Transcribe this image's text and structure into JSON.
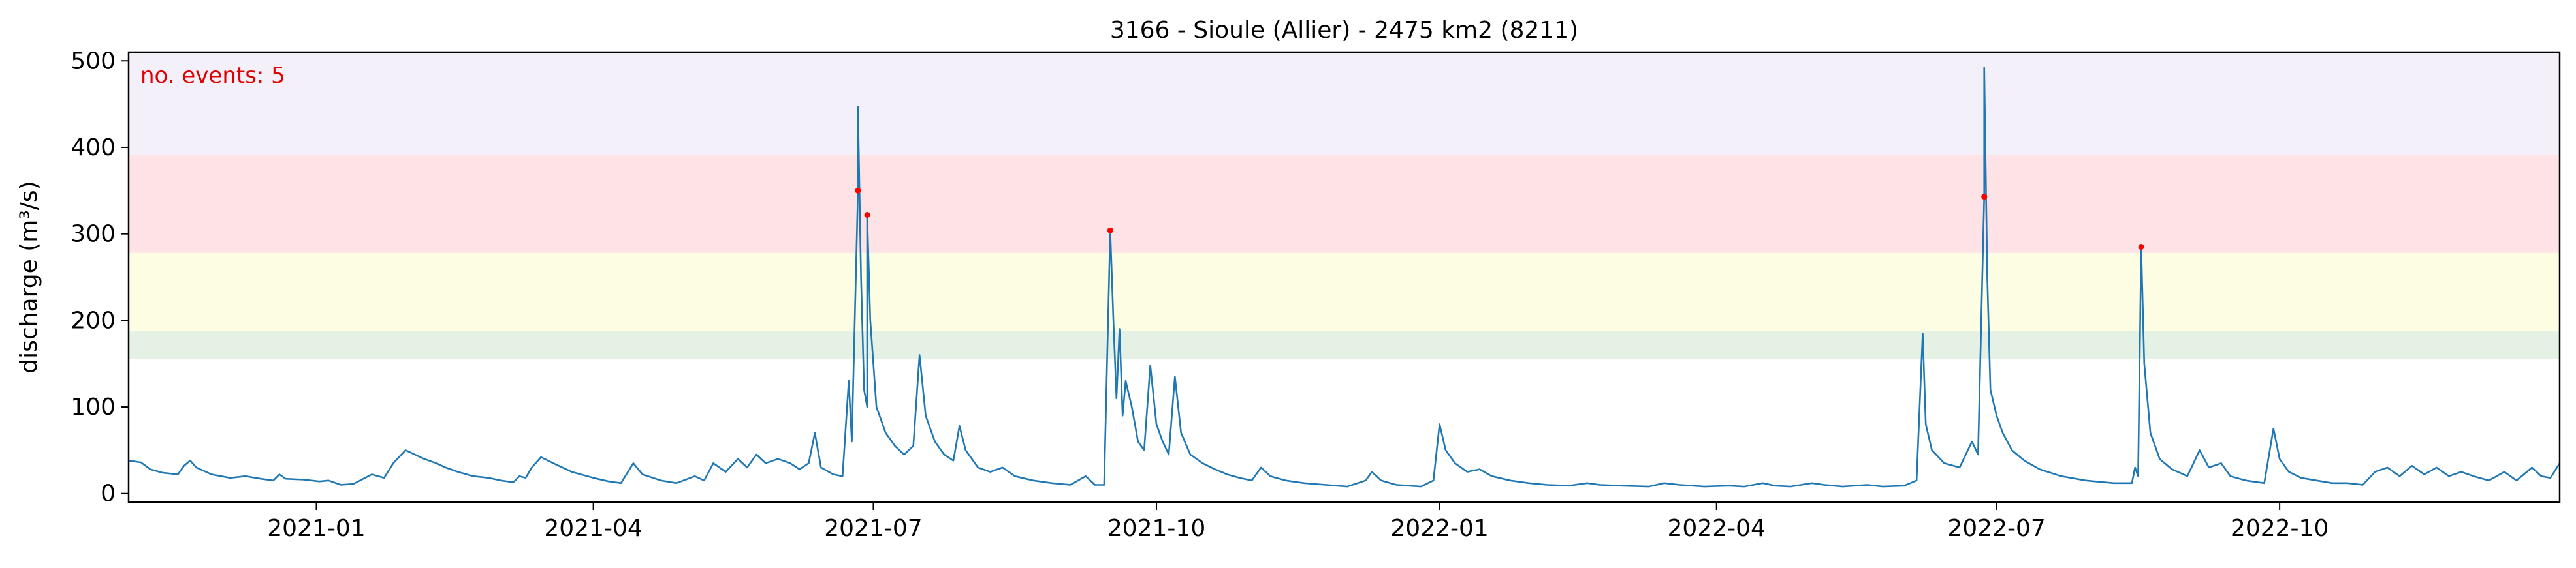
{
  "chart_data": {
    "type": "line",
    "title": "3166 - Sioule (Allier) - 2475 km2 (8211)",
    "xlabel": "",
    "ylabel": "discharge (m³/s)",
    "annotation": "no. events: 5",
    "xlim": [
      "2020-11-01",
      "2022-12-31"
    ],
    "ylim": [
      -10,
      510
    ],
    "y_ticks": [
      0,
      100,
      200,
      300,
      400,
      500
    ],
    "x_ticks": [
      {
        "date": "2021-01-01",
        "label": "2021-01"
      },
      {
        "date": "2021-04-01",
        "label": "2021-04"
      },
      {
        "date": "2021-07-01",
        "label": "2021-07"
      },
      {
        "date": "2021-10-01",
        "label": "2021-10"
      },
      {
        "date": "2022-01-01",
        "label": "2022-01"
      },
      {
        "date": "2022-04-01",
        "label": "2022-04"
      },
      {
        "date": "2022-07-01",
        "label": "2022-07"
      },
      {
        "date": "2022-10-01",
        "label": "2022-10"
      }
    ],
    "grid": false,
    "threshold_bands": [
      {
        "from": 155,
        "to": 188,
        "color": "#e6f1e6"
      },
      {
        "from": 188,
        "to": 278,
        "color": "#fdfde3"
      },
      {
        "from": 278,
        "to": 391,
        "color": "#fde3e6"
      },
      {
        "from": 391,
        "to": 510,
        "color": "#f3f0fa"
      }
    ],
    "series": [
      {
        "color": "#1f77b4",
        "points": [
          [
            "2020-11-01",
            38
          ],
          [
            "2020-11-05",
            36
          ],
          [
            "2020-11-08",
            28
          ],
          [
            "2020-11-12",
            24
          ],
          [
            "2020-11-17",
            22
          ],
          [
            "2020-11-19",
            32
          ],
          [
            "2020-11-21",
            38
          ],
          [
            "2020-11-23",
            30
          ],
          [
            "2020-11-28",
            22
          ],
          [
            "2020-12-04",
            18
          ],
          [
            "2020-12-09",
            20
          ],
          [
            "2020-12-14",
            17
          ],
          [
            "2020-12-18",
            15
          ],
          [
            "2020-12-20",
            22
          ],
          [
            "2020-12-22",
            17
          ],
          [
            "2020-12-28",
            16
          ],
          [
            "2021-01-02",
            14
          ],
          [
            "2021-01-05",
            15
          ],
          [
            "2021-01-09",
            10
          ],
          [
            "2021-01-13",
            11
          ],
          [
            "2021-01-19",
            22
          ],
          [
            "2021-01-23",
            18
          ],
          [
            "2021-01-26",
            35
          ],
          [
            "2021-01-30",
            50
          ],
          [
            "2021-02-02",
            45
          ],
          [
            "2021-02-05",
            40
          ],
          [
            "2021-02-09",
            35
          ],
          [
            "2021-02-12",
            30
          ],
          [
            "2021-02-16",
            25
          ],
          [
            "2021-02-21",
            20
          ],
          [
            "2021-02-26",
            18
          ],
          [
            "2021-03-02",
            15
          ],
          [
            "2021-03-06",
            13
          ],
          [
            "2021-03-08",
            20
          ],
          [
            "2021-03-10",
            18
          ],
          [
            "2021-03-12",
            30
          ],
          [
            "2021-03-15",
            42
          ],
          [
            "2021-03-19",
            35
          ],
          [
            "2021-03-25",
            25
          ],
          [
            "2021-04-01",
            18
          ],
          [
            "2021-04-06",
            14
          ],
          [
            "2021-04-10",
            12
          ],
          [
            "2021-04-14",
            35
          ],
          [
            "2021-04-17",
            22
          ],
          [
            "2021-04-23",
            15
          ],
          [
            "2021-04-28",
            12
          ],
          [
            "2021-05-04",
            20
          ],
          [
            "2021-05-07",
            15
          ],
          [
            "2021-05-10",
            35
          ],
          [
            "2021-05-14",
            25
          ],
          [
            "2021-05-18",
            40
          ],
          [
            "2021-05-21",
            30
          ],
          [
            "2021-05-24",
            45
          ],
          [
            "2021-05-27",
            35
          ],
          [
            "2021-05-31",
            40
          ],
          [
            "2021-06-04",
            35
          ],
          [
            "2021-06-07",
            28
          ],
          [
            "2021-06-10",
            35
          ],
          [
            "2021-06-12",
            70
          ],
          [
            "2021-06-14",
            30
          ],
          [
            "2021-06-18",
            22
          ],
          [
            "2021-06-21",
            20
          ],
          [
            "2021-06-23",
            130
          ],
          [
            "2021-06-24",
            60
          ],
          [
            "2021-06-26",
            350
          ],
          [
            "2021-06-26",
            447
          ],
          [
            "2021-06-27",
            250
          ],
          [
            "2021-06-28",
            120
          ],
          [
            "2021-06-29",
            100
          ],
          [
            "2021-06-29",
            322
          ],
          [
            "2021-06-30",
            200
          ],
          [
            "2021-07-02",
            100
          ],
          [
            "2021-07-05",
            70
          ],
          [
            "2021-07-08",
            55
          ],
          [
            "2021-07-11",
            45
          ],
          [
            "2021-07-14",
            55
          ],
          [
            "2021-07-16",
            160
          ],
          [
            "2021-07-18",
            90
          ],
          [
            "2021-07-21",
            60
          ],
          [
            "2021-07-24",
            45
          ],
          [
            "2021-07-27",
            38
          ],
          [
            "2021-07-29",
            78
          ],
          [
            "2021-07-31",
            50
          ],
          [
            "2021-08-04",
            30
          ],
          [
            "2021-08-08",
            25
          ],
          [
            "2021-08-12",
            30
          ],
          [
            "2021-08-16",
            20
          ],
          [
            "2021-08-22",
            15
          ],
          [
            "2021-08-28",
            12
          ],
          [
            "2021-09-03",
            10
          ],
          [
            "2021-09-08",
            20
          ],
          [
            "2021-09-11",
            10
          ],
          [
            "2021-09-14",
            10
          ],
          [
            "2021-09-16",
            304
          ],
          [
            "2021-09-17",
            200
          ],
          [
            "2021-09-18",
            110
          ],
          [
            "2021-09-19",
            190
          ],
          [
            "2021-09-20",
            90
          ],
          [
            "2021-09-21",
            130
          ],
          [
            "2021-09-23",
            100
          ],
          [
            "2021-09-25",
            60
          ],
          [
            "2021-09-27",
            50
          ],
          [
            "2021-09-29",
            148
          ],
          [
            "2021-10-01",
            80
          ],
          [
            "2021-10-03",
            60
          ],
          [
            "2021-10-05",
            45
          ],
          [
            "2021-10-07",
            135
          ],
          [
            "2021-10-09",
            70
          ],
          [
            "2021-10-12",
            45
          ],
          [
            "2021-10-16",
            35
          ],
          [
            "2021-10-20",
            28
          ],
          [
            "2021-10-24",
            22
          ],
          [
            "2021-10-28",
            18
          ],
          [
            "2021-11-01",
            15
          ],
          [
            "2021-11-04",
            30
          ],
          [
            "2021-11-07",
            20
          ],
          [
            "2021-11-12",
            15
          ],
          [
            "2021-11-18",
            12
          ],
          [
            "2021-11-25",
            10
          ],
          [
            "2021-12-02",
            8
          ],
          [
            "2021-12-08",
            15
          ],
          [
            "2021-12-10",
            25
          ],
          [
            "2021-12-13",
            15
          ],
          [
            "2021-12-18",
            10
          ],
          [
            "2021-12-26",
            8
          ],
          [
            "2021-12-30",
            15
          ],
          [
            "2022-01-01",
            80
          ],
          [
            "2022-01-03",
            50
          ],
          [
            "2022-01-06",
            35
          ],
          [
            "2022-01-10",
            25
          ],
          [
            "2022-01-14",
            28
          ],
          [
            "2022-01-18",
            20
          ],
          [
            "2022-01-24",
            15
          ],
          [
            "2022-01-30",
            12
          ],
          [
            "2022-02-05",
            10
          ],
          [
            "2022-02-12",
            9
          ],
          [
            "2022-02-18",
            12
          ],
          [
            "2022-02-22",
            10
          ],
          [
            "2022-03-01",
            9
          ],
          [
            "2022-03-10",
            8
          ],
          [
            "2022-03-15",
            12
          ],
          [
            "2022-03-20",
            10
          ],
          [
            "2022-03-28",
            8
          ],
          [
            "2022-04-05",
            9
          ],
          [
            "2022-04-10",
            8
          ],
          [
            "2022-04-16",
            12
          ],
          [
            "2022-04-20",
            9
          ],
          [
            "2022-04-25",
            8
          ],
          [
            "2022-05-02",
            12
          ],
          [
            "2022-05-06",
            10
          ],
          [
            "2022-05-12",
            8
          ],
          [
            "2022-05-20",
            10
          ],
          [
            "2022-05-25",
            8
          ],
          [
            "2022-06-01",
            9
          ],
          [
            "2022-06-05",
            15
          ],
          [
            "2022-06-07",
            185
          ],
          [
            "2022-06-08",
            80
          ],
          [
            "2022-06-10",
            50
          ],
          [
            "2022-06-14",
            35
          ],
          [
            "2022-06-19",
            30
          ],
          [
            "2022-06-23",
            60
          ],
          [
            "2022-06-25",
            45
          ],
          [
            "2022-06-27",
            343
          ],
          [
            "2022-06-27",
            492
          ],
          [
            "2022-06-28",
            250
          ],
          [
            "2022-06-29",
            120
          ],
          [
            "2022-07-01",
            90
          ],
          [
            "2022-07-03",
            70
          ],
          [
            "2022-07-06",
            50
          ],
          [
            "2022-07-10",
            38
          ],
          [
            "2022-07-15",
            28
          ],
          [
            "2022-07-22",
            20
          ],
          [
            "2022-07-30",
            15
          ],
          [
            "2022-08-08",
            12
          ],
          [
            "2022-08-14",
            12
          ],
          [
            "2022-08-15",
            30
          ],
          [
            "2022-08-16",
            20
          ],
          [
            "2022-08-17",
            285
          ],
          [
            "2022-08-18",
            150
          ],
          [
            "2022-08-20",
            70
          ],
          [
            "2022-08-23",
            40
          ],
          [
            "2022-08-27",
            28
          ],
          [
            "2022-09-01",
            20
          ],
          [
            "2022-09-05",
            50
          ],
          [
            "2022-09-08",
            30
          ],
          [
            "2022-09-12",
            35
          ],
          [
            "2022-09-15",
            20
          ],
          [
            "2022-09-20",
            15
          ],
          [
            "2022-09-26",
            12
          ],
          [
            "2022-09-29",
            75
          ],
          [
            "2022-10-01",
            40
          ],
          [
            "2022-10-04",
            25
          ],
          [
            "2022-10-08",
            18
          ],
          [
            "2022-10-13",
            15
          ],
          [
            "2022-10-18",
            12
          ],
          [
            "2022-10-23",
            12
          ],
          [
            "2022-10-28",
            10
          ],
          [
            "2022-11-01",
            25
          ],
          [
            "2022-11-05",
            30
          ],
          [
            "2022-11-09",
            20
          ],
          [
            "2022-11-13",
            32
          ],
          [
            "2022-11-17",
            22
          ],
          [
            "2022-11-21",
            30
          ],
          [
            "2022-11-25",
            20
          ],
          [
            "2022-11-29",
            25
          ],
          [
            "2022-12-03",
            20
          ],
          [
            "2022-12-08",
            15
          ],
          [
            "2022-12-13",
            25
          ],
          [
            "2022-12-17",
            15
          ],
          [
            "2022-12-22",
            30
          ],
          [
            "2022-12-25",
            20
          ],
          [
            "2022-12-28",
            18
          ],
          [
            "2022-12-31",
            35
          ]
        ]
      }
    ],
    "events": [
      [
        "2021-06-26",
        350
      ],
      [
        "2021-06-29",
        322
      ],
      [
        "2021-09-16",
        304
      ],
      [
        "2022-06-27",
        343
      ],
      [
        "2022-08-17",
        285
      ]
    ],
    "event_color": "#ff0000"
  }
}
